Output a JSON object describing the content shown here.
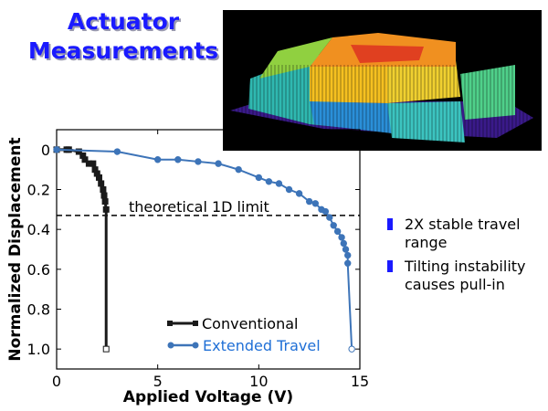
{
  "slide": {
    "title": "Actuator Measurements",
    "bullets": [
      {
        "text": "2X stable travel range"
      },
      {
        "text": "Tilting instability causes pull-in"
      }
    ],
    "bullet_color": "#1a1aff",
    "image": {
      "description_icon": "3d-surface-plot-image"
    }
  },
  "chart_data": {
    "type": "line",
    "xlabel": "Applied Voltage (V)",
    "ylabel": "Normalized Displacement",
    "xlim": [
      0,
      15
    ],
    "ylim": [
      1.1,
      -0.1
    ],
    "y_inverted": true,
    "xticks": [
      "0",
      "5",
      "10",
      "15"
    ],
    "yticks": [
      "0",
      "0.2",
      "0.4",
      "0.6",
      "0.8",
      "1.0"
    ],
    "grid": false,
    "legend": "bottom-right",
    "annotation": {
      "text": "theoretical 1D limit",
      "y": 0.33
    },
    "series": [
      {
        "name": "Conventional",
        "color": "#1a1a1a",
        "marker": "square",
        "x": [
          0,
          0.5,
          0.6,
          1.1,
          1.3,
          1.4,
          1.6,
          1.8,
          1.9,
          2.0,
          2.1,
          2.2,
          2.3,
          2.35,
          2.4,
          2.45,
          2.45
        ],
        "y": [
          0,
          0,
          0,
          0.01,
          0.03,
          0.05,
          0.07,
          0.07,
          0.1,
          0.12,
          0.14,
          0.17,
          0.2,
          0.23,
          0.26,
          0.3,
          1.0
        ]
      },
      {
        "name": "Extended Travel",
        "color": "#3d74b8",
        "label_color": "#1f6fd6",
        "marker": "circle",
        "x": [
          0,
          3,
          5,
          6,
          7,
          8,
          9,
          10,
          10.5,
          11,
          11.5,
          12,
          12.5,
          12.8,
          13.1,
          13.3,
          13.5,
          13.7,
          13.9,
          14.1,
          14.2,
          14.3,
          14.4,
          14.4,
          14.6
        ],
        "y": [
          0,
          0.01,
          0.05,
          0.05,
          0.06,
          0.07,
          0.1,
          0.14,
          0.16,
          0.17,
          0.2,
          0.22,
          0.26,
          0.27,
          0.3,
          0.31,
          0.34,
          0.38,
          0.41,
          0.44,
          0.47,
          0.5,
          0.53,
          0.57,
          1.0
        ]
      }
    ]
  }
}
